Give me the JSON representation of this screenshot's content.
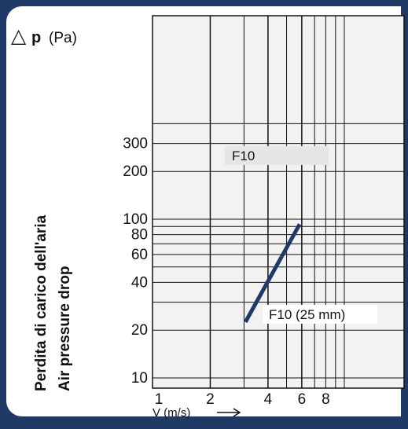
{
  "chart_data": {
    "type": "line",
    "y_symbol": "△",
    "y_var": "p",
    "y_unit": "(Pa)",
    "ylabel": [
      "Perdita di carico  dell'aria",
      "Air pressure drop"
    ],
    "xlabel": "V (m/s)",
    "xscale": "log",
    "yscale": "log",
    "xlim": [
      1,
      10
    ],
    "ylim": [
      10,
      500
    ],
    "x_ticks": [
      "1",
      "2",
      "4",
      "6",
      "8"
    ],
    "y_ticks": [
      "10",
      "20",
      "40",
      "60",
      "80",
      "100",
      "200",
      "300"
    ],
    "grid": true,
    "series": [
      {
        "name": "F10 (25 mm)",
        "x": [
          3.05,
          5.85
        ],
        "y": [
          22.5,
          93
        ]
      }
    ],
    "annotations": [
      "F10"
    ],
    "colors": {
      "line": "#1f3a66",
      "grid": "#000000",
      "plot_bg": "#f2f2f2",
      "frame": "#1f3a66"
    }
  }
}
